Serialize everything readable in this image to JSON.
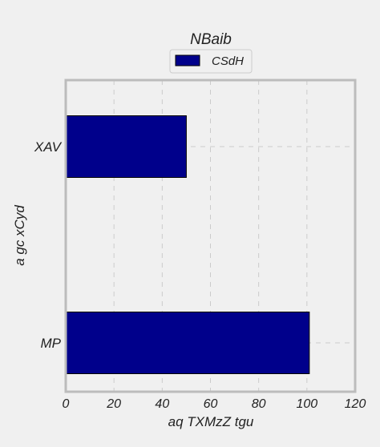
{
  "chart_data": {
    "type": "bar",
    "orientation": "horizontal",
    "title": "NBaib",
    "xlabel": "aq TXMzZ tgu",
    "ylabel": "a gc  xCyd",
    "categories": [
      "XAV",
      "MP"
    ],
    "series": [
      {
        "name": "CSdH",
        "values": [
          50,
          101
        ],
        "color": "#00008b"
      }
    ],
    "xlim": [
      0,
      120
    ],
    "xticks": [
      0,
      20,
      40,
      60,
      80,
      100,
      120
    ],
    "grid": true,
    "legend": "top-center"
  },
  "colors": {
    "background": "#f0f0f0",
    "axis_frame": "#bcbcbc",
    "grid": "#cbcbcb",
    "bar_edge": "#000000"
  }
}
